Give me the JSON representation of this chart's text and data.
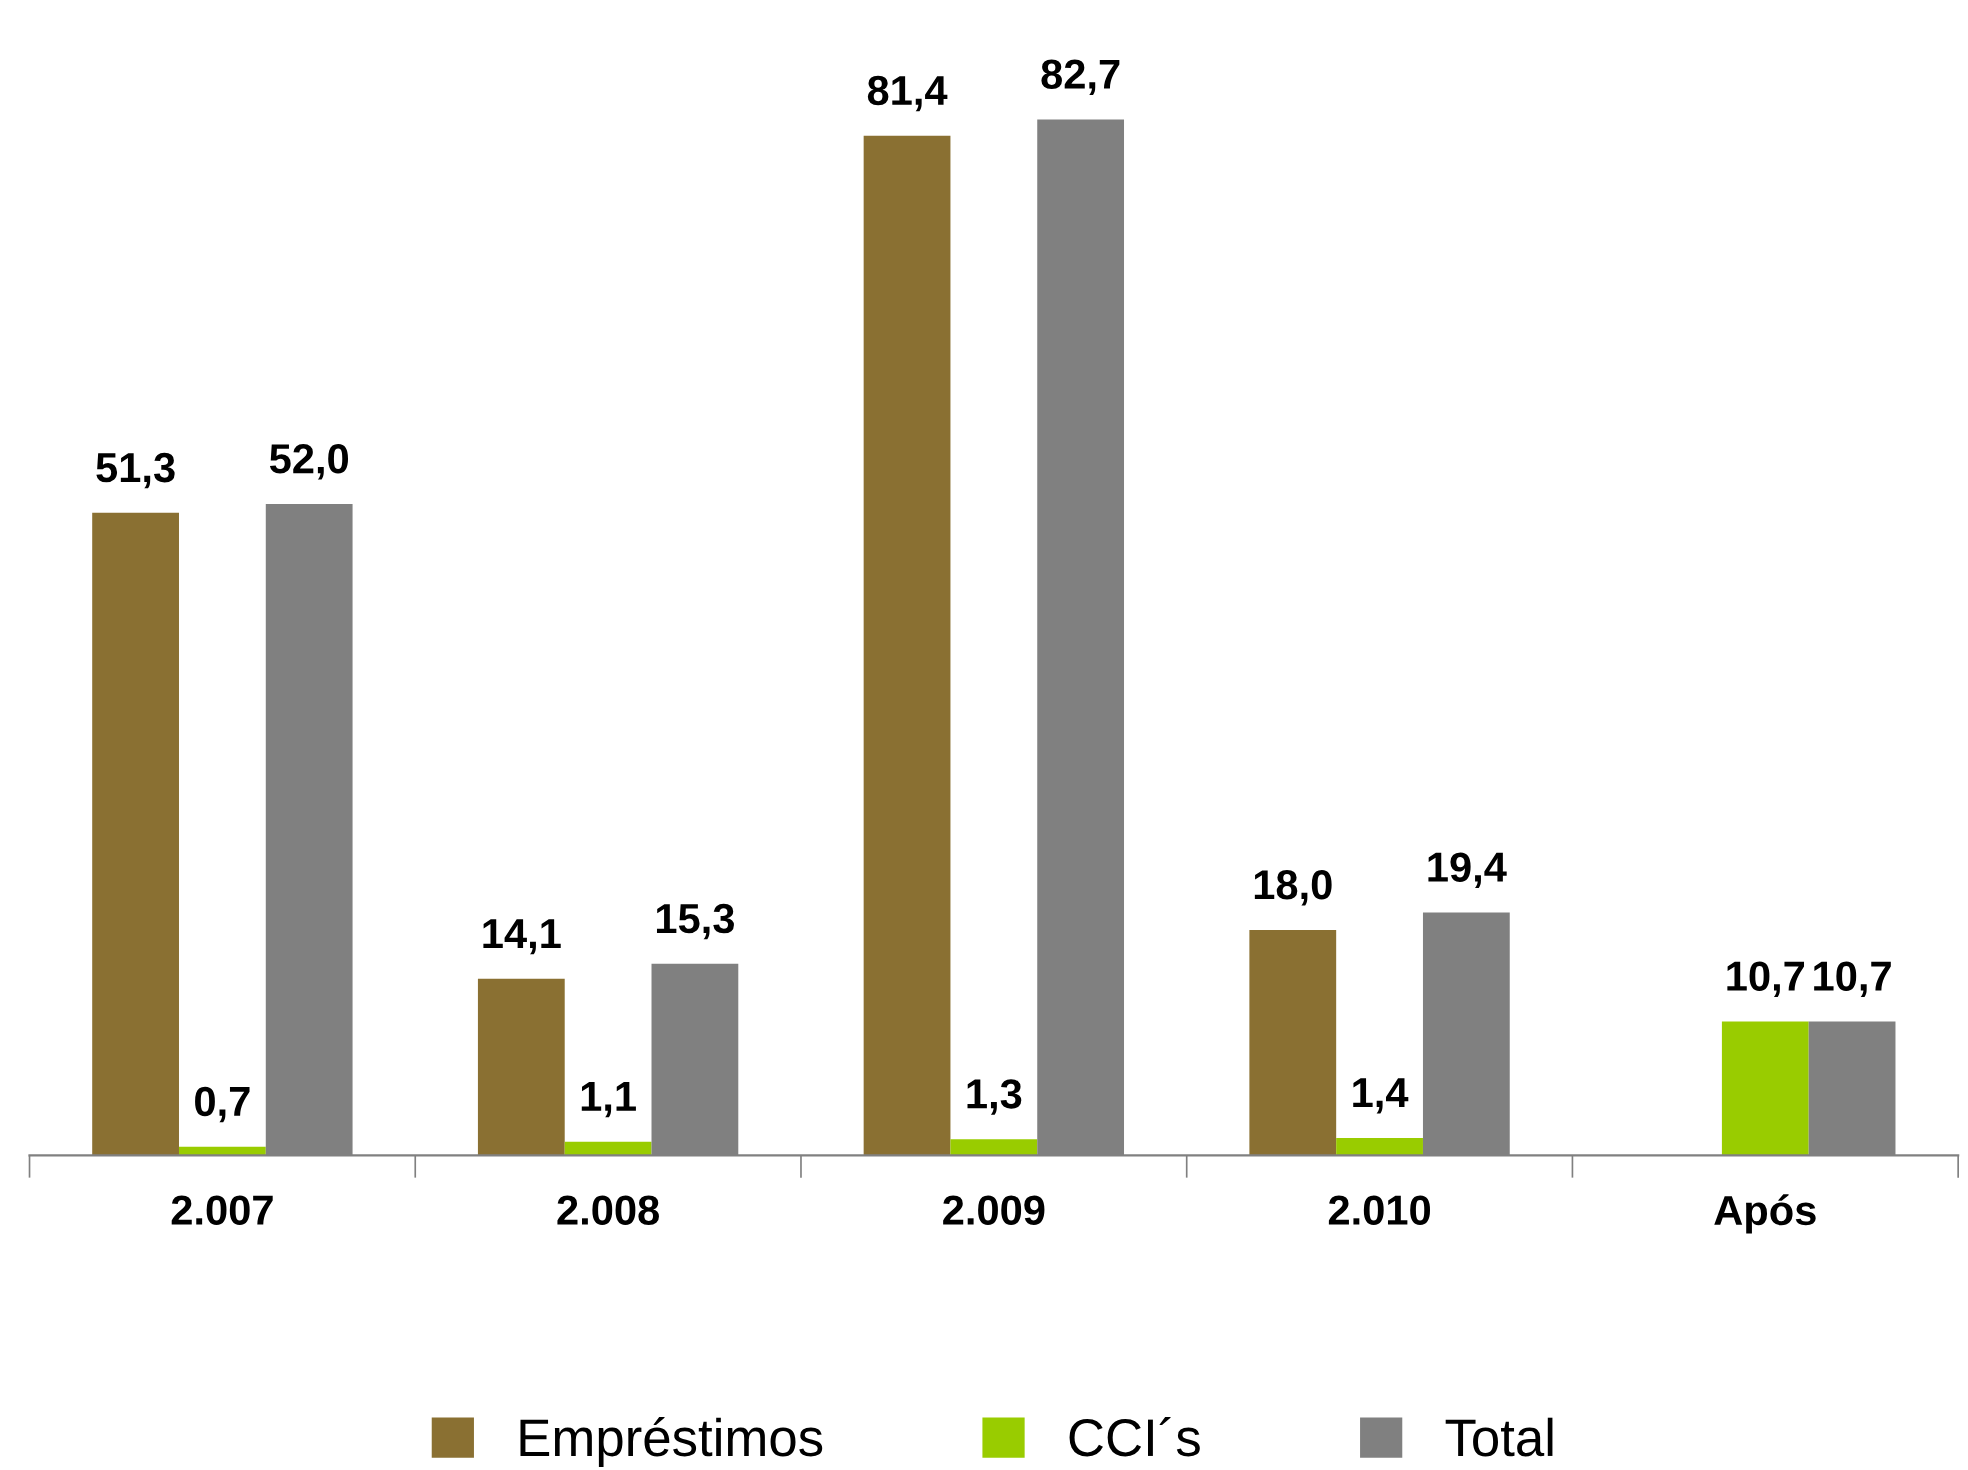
{
  "chart_data": {
    "type": "bar",
    "categories": [
      "2.007",
      "2.008",
      "2.009",
      "2.010",
      "Após"
    ],
    "series": [
      {
        "name": "Empréstimos",
        "color": "#8a7032",
        "values": [
          51.3,
          14.1,
          81.4,
          18.0,
          null
        ],
        "value_labels": [
          "51,3",
          "14,1",
          "81,4",
          "18,0",
          null
        ]
      },
      {
        "name": "CCI´s",
        "color": "#99cc00",
        "values": [
          0.7,
          1.1,
          1.3,
          1.4,
          10.7
        ],
        "value_labels": [
          "0,7",
          "1,1",
          "1,3",
          "1,4",
          "10,7"
        ]
      },
      {
        "name": "Total",
        "color": "#808080",
        "values": [
          52.0,
          15.3,
          82.7,
          19.4,
          10.7
        ],
        "value_labels": [
          "52,0",
          "15,3",
          "82,7",
          "19,4",
          "10,7"
        ]
      }
    ],
    "legend": "bottom",
    "grid": false
  }
}
